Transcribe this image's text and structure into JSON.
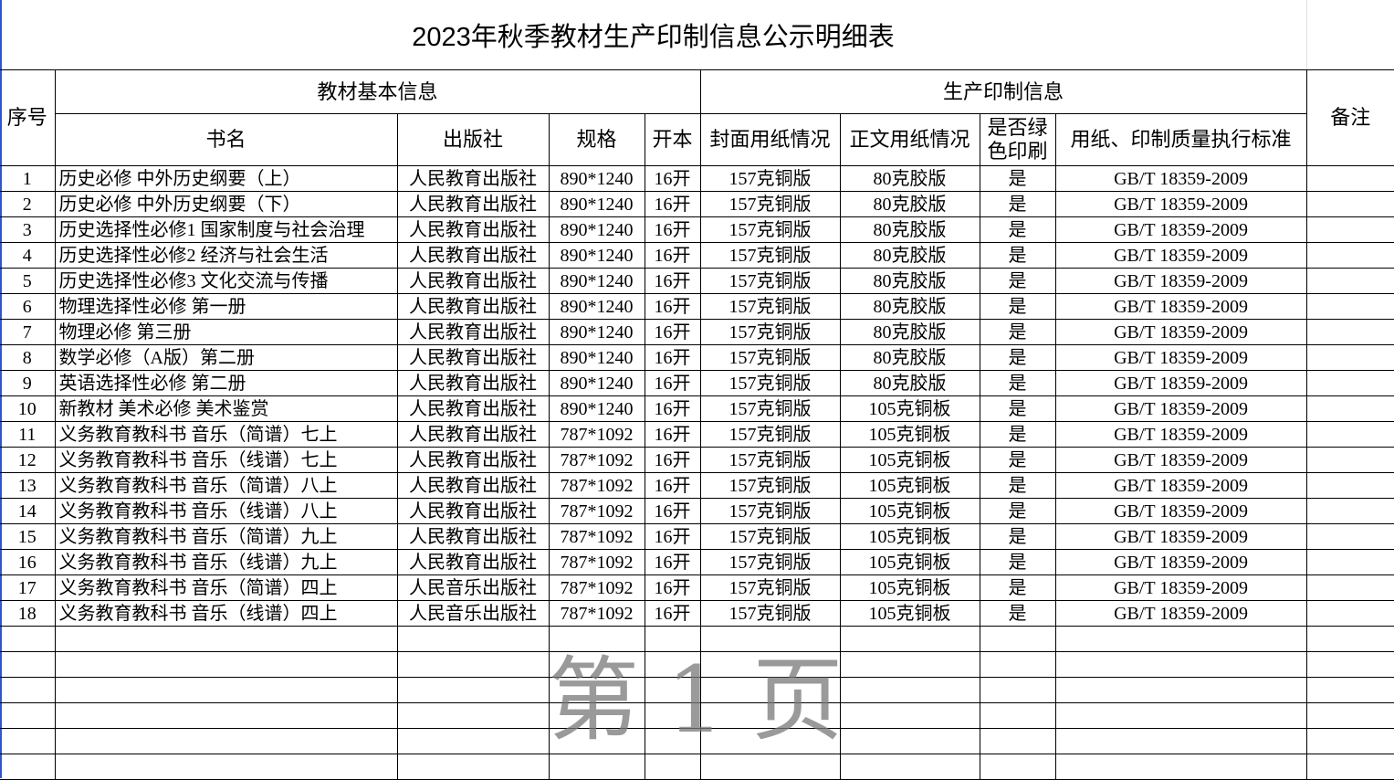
{
  "title": "2023年秋季教材生产印制信息公示明细表",
  "watermark": "第1页",
  "headers": {
    "seq": "序号",
    "group_basic": "教材基本信息",
    "group_print": "生产印制信息",
    "remark": "备注",
    "book": "书名",
    "publisher": "出版社",
    "spec": "规格",
    "format": "开本",
    "cover_paper": "封面用纸情况",
    "body_paper": "正文用纸情况",
    "green": "是否绿色印刷",
    "standard": "用纸、印制质量执行标准"
  },
  "rows": [
    {
      "seq": "1",
      "book": "历史必修 中外历史纲要（上）",
      "publisher": "人民教育出版社",
      "spec": "890*1240",
      "format": "16开",
      "cover": "157克铜版",
      "body": "80克胶版",
      "green": "是",
      "standard": "GB/T 18359-2009"
    },
    {
      "seq": "2",
      "book": "历史必修 中外历史纲要（下）",
      "publisher": "人民教育出版社",
      "spec": "890*1240",
      "format": "16开",
      "cover": "157克铜版",
      "body": "80克胶版",
      "green": "是",
      "standard": "GB/T 18359-2009"
    },
    {
      "seq": "3",
      "book": "历史选择性必修1 国家制度与社会治理",
      "publisher": "人民教育出版社",
      "spec": "890*1240",
      "format": "16开",
      "cover": "157克铜版",
      "body": "80克胶版",
      "green": "是",
      "standard": "GB/T 18359-2009"
    },
    {
      "seq": "4",
      "book": "历史选择性必修2 经济与社会生活",
      "publisher": "人民教育出版社",
      "spec": "890*1240",
      "format": "16开",
      "cover": "157克铜版",
      "body": "80克胶版",
      "green": "是",
      "standard": "GB/T 18359-2009"
    },
    {
      "seq": "5",
      "book": "历史选择性必修3 文化交流与传播",
      "publisher": "人民教育出版社",
      "spec": "890*1240",
      "format": "16开",
      "cover": "157克铜版",
      "body": "80克胶版",
      "green": "是",
      "standard": "GB/T 18359-2009"
    },
    {
      "seq": "6",
      "book": "物理选择性必修 第一册",
      "publisher": "人民教育出版社",
      "spec": "890*1240",
      "format": "16开",
      "cover": "157克铜版",
      "body": "80克胶版",
      "green": "是",
      "standard": "GB/T 18359-2009"
    },
    {
      "seq": "7",
      "book": "物理必修 第三册",
      "publisher": "人民教育出版社",
      "spec": "890*1240",
      "format": "16开",
      "cover": "157克铜版",
      "body": "80克胶版",
      "green": "是",
      "standard": "GB/T 18359-2009"
    },
    {
      "seq": "8",
      "book": "数学必修（A版）第二册",
      "publisher": "人民教育出版社",
      "spec": "890*1240",
      "format": "16开",
      "cover": "157克铜版",
      "body": "80克胶版",
      "green": "是",
      "standard": "GB/T 18359-2009"
    },
    {
      "seq": "9",
      "book": "英语选择性必修 第二册",
      "publisher": "人民教育出版社",
      "spec": "890*1240",
      "format": "16开",
      "cover": "157克铜版",
      "body": "80克胶版",
      "green": "是",
      "standard": "GB/T 18359-2009"
    },
    {
      "seq": "10",
      "book": "新教材 美术必修 美术鉴赏",
      "publisher": "人民教育出版社",
      "spec": "890*1240",
      "format": "16开",
      "cover": "157克铜版",
      "body": "105克铜板",
      "green": "是",
      "standard": "GB/T 18359-2009"
    },
    {
      "seq": "11",
      "book": "义务教育教科书 音乐（简谱）七上",
      "publisher": "人民教育出版社",
      "spec": "787*1092",
      "format": "16开",
      "cover": "157克铜版",
      "body": "105克铜板",
      "green": "是",
      "standard": "GB/T 18359-2009"
    },
    {
      "seq": "12",
      "book": "义务教育教科书 音乐（线谱）七上",
      "publisher": "人民教育出版社",
      "spec": "787*1092",
      "format": "16开",
      "cover": "157克铜版",
      "body": "105克铜板",
      "green": "是",
      "standard": "GB/T 18359-2009"
    },
    {
      "seq": "13",
      "book": "义务教育教科书 音乐（简谱）八上",
      "publisher": "人民教育出版社",
      "spec": "787*1092",
      "format": "16开",
      "cover": "157克铜版",
      "body": "105克铜板",
      "green": "是",
      "standard": "GB/T 18359-2009"
    },
    {
      "seq": "14",
      "book": "义务教育教科书 音乐（线谱）八上",
      "publisher": "人民教育出版社",
      "spec": "787*1092",
      "format": "16开",
      "cover": "157克铜版",
      "body": "105克铜板",
      "green": "是",
      "standard": "GB/T 18359-2009"
    },
    {
      "seq": "15",
      "book": "义务教育教科书 音乐（简谱）九上",
      "publisher": "人民教育出版社",
      "spec": "787*1092",
      "format": "16开",
      "cover": "157克铜版",
      "body": "105克铜板",
      "green": "是",
      "standard": "GB/T 18359-2009"
    },
    {
      "seq": "16",
      "book": "义务教育教科书 音乐（线谱）九上",
      "publisher": "人民教育出版社",
      "spec": "787*1092",
      "format": "16开",
      "cover": "157克铜版",
      "body": "105克铜板",
      "green": "是",
      "standard": "GB/T 18359-2009"
    },
    {
      "seq": "17",
      "book": "义务教育教科书 音乐（简谱）四上",
      "publisher": "人民音乐出版社",
      "spec": "787*1092",
      "format": "16开",
      "cover": "157克铜版",
      "body": "105克铜板",
      "green": "是",
      "standard": "GB/T 18359-2009"
    },
    {
      "seq": "18",
      "book": "义务教育教科书 音乐（线谱）四上",
      "publisher": "人民音乐出版社",
      "spec": "787*1092",
      "format": "16开",
      "cover": "157克铜版",
      "body": "105克铜板",
      "green": "是",
      "standard": "GB/T 18359-2009"
    }
  ],
  "colors": {
    "left_border": "#2f55d4",
    "watermark": "#787878"
  }
}
